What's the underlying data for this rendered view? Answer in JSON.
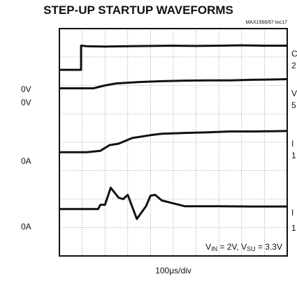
{
  "chart_data": {
    "type": "line",
    "title": "STEP-UP STARTUP WAVEFORMS",
    "subtitle": "MAX1566/67 toc17",
    "xlabel": "100μs/div",
    "condition": "V_IN = 2V, V_SU = 3.3V",
    "condition_parts": [
      {
        "text": "V",
        "sub": false
      },
      {
        "text": "IN",
        "sub": true
      },
      {
        "text": " = 2V, V",
        "sub": false
      },
      {
        "text": "SU",
        "sub": true
      },
      {
        "text": " = 3.3V",
        "sub": false
      }
    ],
    "xlim": [
      0,
      1000
    ],
    "ylim": [
      0,
      8
    ],
    "grid": true,
    "grid_divisions": {
      "x": 10,
      "y": 8
    },
    "left_labels": [
      "0V",
      "0V",
      "0A",
      "0A"
    ],
    "right_labels": [
      {
        "line1": "C",
        "line2": "2"
      },
      {
        "line1": "V",
        "line2": "5"
      },
      {
        "line1": "I",
        "line2": "1"
      },
      {
        "line1": "I",
        "line2": "1"
      }
    ],
    "series": [
      {
        "label": "0V",
        "x": [
          0,
          95,
          95,
          120,
          200,
          300,
          400,
          500,
          600,
          700,
          800,
          900,
          1000
        ],
        "y": [
          1.45,
          1.45,
          0.6,
          0.62,
          0.63,
          0.62,
          0.61,
          0.6,
          0.61,
          0.6,
          0.59,
          0.6,
          0.6
        ]
      },
      {
        "label": "0V",
        "x": [
          0,
          150,
          200,
          250,
          350,
          450,
          550,
          650,
          750,
          850,
          950,
          1000
        ],
        "y": [
          2.1,
          2.1,
          2.0,
          1.93,
          1.88,
          1.85,
          1.83,
          1.82,
          1.82,
          1.8,
          1.79,
          1.78
        ]
      },
      {
        "label": "0A",
        "x": [
          0,
          120,
          180,
          220,
          260,
          320,
          400,
          450,
          550,
          650,
          750,
          850,
          950,
          1000
        ],
        "y": [
          4.35,
          4.35,
          4.3,
          4.1,
          4.05,
          3.85,
          3.75,
          3.7,
          3.67,
          3.65,
          3.62,
          3.62,
          3.61,
          3.6
        ]
      },
      {
        "label": "0A",
        "x": [
          0,
          170,
          180,
          200,
          225,
          260,
          280,
          300,
          340,
          380,
          400,
          420,
          450,
          500,
          550,
          700,
          850,
          1000
        ],
        "y": [
          6.35,
          6.35,
          6.2,
          6.2,
          5.6,
          5.95,
          6.0,
          5.85,
          6.7,
          6.25,
          5.88,
          5.85,
          6.05,
          6.15,
          6.25,
          6.25,
          6.26,
          6.26
        ]
      }
    ]
  }
}
